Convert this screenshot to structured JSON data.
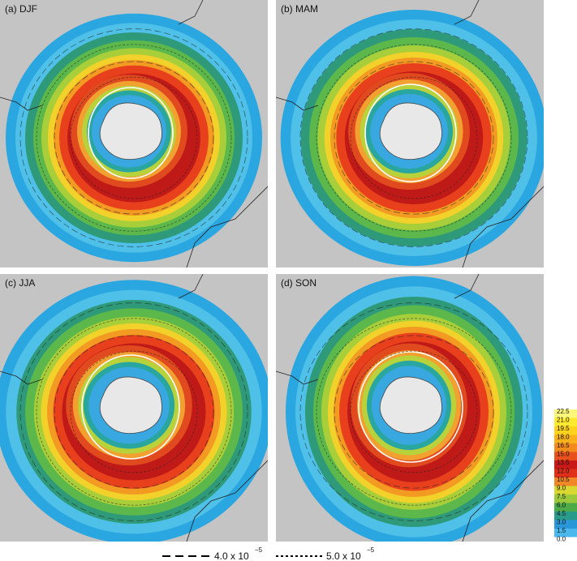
{
  "panels": [
    {
      "label": "(a) DJF"
    },
    {
      "label": "(b) MAM"
    },
    {
      "label": "(c) JJA"
    },
    {
      "label": "(d) SON"
    }
  ],
  "colorbar": {
    "labels": [
      "22.5",
      "21.0",
      "19.5",
      "18.0",
      "16.5",
      "15.0",
      "13.5",
      "12.0",
      "10.5",
      "9.0",
      "7.5",
      "6.0",
      "4.5",
      "3.0",
      "1.5",
      "0.0"
    ]
  },
  "legend": [
    {
      "text": "4.0 x 10",
      "exponent": "−5"
    },
    {
      "text": "5.0 x 10",
      "exponent": "−5"
    }
  ]
}
